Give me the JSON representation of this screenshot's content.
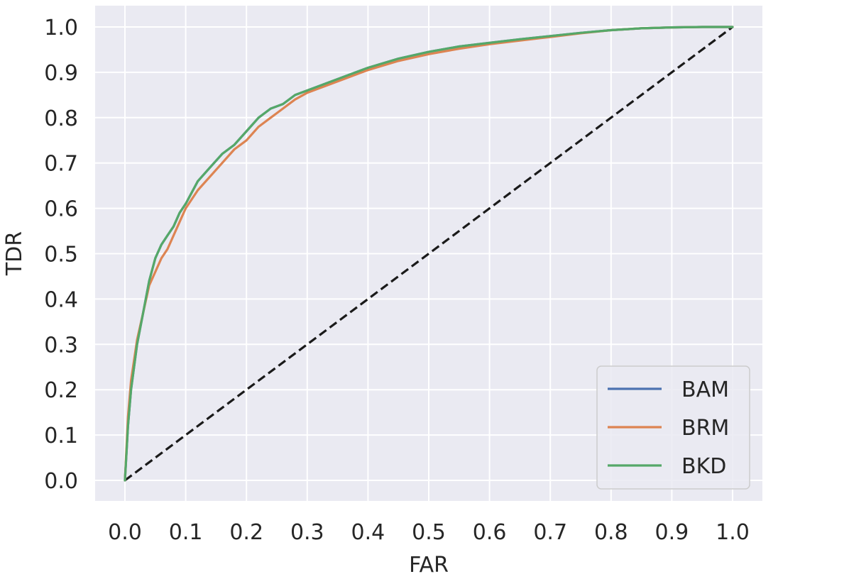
{
  "chart_data": {
    "type": "line",
    "xlabel": "FAR",
    "ylabel": "TDR",
    "xlim": [
      0.0,
      1.0
    ],
    "ylim": [
      0.0,
      1.0
    ],
    "x_ticks": [
      "0.0",
      "0.1",
      "0.2",
      "0.3",
      "0.4",
      "0.5",
      "0.6",
      "0.7",
      "0.8",
      "0.9",
      "1.0"
    ],
    "y_ticks": [
      "0.0",
      "0.1",
      "0.2",
      "0.3",
      "0.4",
      "0.5",
      "0.6",
      "0.7",
      "0.8",
      "0.9",
      "1.0"
    ],
    "grid": true,
    "legend_position": "bottom-right",
    "plot_background": "#eaeaf2",
    "series": [
      {
        "name": "BAM",
        "color": "#4c72b0",
        "x": [
          0.0,
          0.005,
          0.01,
          0.02,
          0.03,
          0.04,
          0.05,
          0.06,
          0.07,
          0.08,
          0.09,
          0.1,
          0.12,
          0.14,
          0.16,
          0.18,
          0.2,
          0.22,
          0.24,
          0.26,
          0.28,
          0.3,
          0.33,
          0.36,
          0.4,
          0.45,
          0.5,
          0.55,
          0.6,
          0.65,
          0.7,
          0.75,
          0.8,
          0.85,
          0.9,
          0.95,
          1.0
        ],
        "y": [
          0.0,
          0.12,
          0.2,
          0.3,
          0.37,
          0.44,
          0.49,
          0.52,
          0.54,
          0.56,
          0.59,
          0.61,
          0.66,
          0.69,
          0.72,
          0.74,
          0.77,
          0.8,
          0.82,
          0.83,
          0.85,
          0.86,
          0.875,
          0.89,
          0.91,
          0.93,
          0.945,
          0.957,
          0.965,
          0.973,
          0.98,
          0.987,
          0.993,
          0.997,
          0.999,
          1.0,
          1.0
        ]
      },
      {
        "name": "BRM",
        "color": "#dd8452",
        "x": [
          0.0,
          0.005,
          0.01,
          0.02,
          0.03,
          0.04,
          0.05,
          0.06,
          0.07,
          0.08,
          0.09,
          0.1,
          0.12,
          0.14,
          0.16,
          0.18,
          0.2,
          0.22,
          0.24,
          0.26,
          0.28,
          0.3,
          0.33,
          0.36,
          0.4,
          0.45,
          0.5,
          0.55,
          0.6,
          0.65,
          0.7,
          0.75,
          0.8,
          0.85,
          0.9,
          0.95,
          1.0
        ],
        "y": [
          0.0,
          0.14,
          0.22,
          0.31,
          0.37,
          0.43,
          0.46,
          0.49,
          0.51,
          0.54,
          0.57,
          0.6,
          0.64,
          0.67,
          0.7,
          0.73,
          0.75,
          0.78,
          0.8,
          0.82,
          0.84,
          0.855,
          0.87,
          0.885,
          0.905,
          0.925,
          0.94,
          0.952,
          0.962,
          0.97,
          0.978,
          0.986,
          0.993,
          0.997,
          0.999,
          1.0,
          1.0
        ]
      },
      {
        "name": "BKD",
        "color": "#55a868",
        "x": [
          0.0,
          0.005,
          0.01,
          0.02,
          0.03,
          0.04,
          0.05,
          0.06,
          0.07,
          0.08,
          0.09,
          0.1,
          0.12,
          0.14,
          0.16,
          0.18,
          0.2,
          0.22,
          0.24,
          0.26,
          0.28,
          0.3,
          0.33,
          0.36,
          0.4,
          0.45,
          0.5,
          0.55,
          0.6,
          0.65,
          0.7,
          0.75,
          0.8,
          0.85,
          0.9,
          0.95,
          1.0
        ],
        "y": [
          0.0,
          0.12,
          0.2,
          0.3,
          0.37,
          0.44,
          0.49,
          0.52,
          0.54,
          0.56,
          0.59,
          0.61,
          0.66,
          0.69,
          0.72,
          0.74,
          0.77,
          0.8,
          0.82,
          0.83,
          0.85,
          0.86,
          0.875,
          0.89,
          0.91,
          0.93,
          0.945,
          0.957,
          0.965,
          0.973,
          0.98,
          0.987,
          0.993,
          0.997,
          0.999,
          1.0,
          1.0
        ]
      }
    ],
    "reference_line": {
      "x": [
        0.0,
        1.0
      ],
      "y": [
        0.0,
        1.0
      ],
      "color": "#1a1a1a",
      "style": "dashed"
    }
  }
}
